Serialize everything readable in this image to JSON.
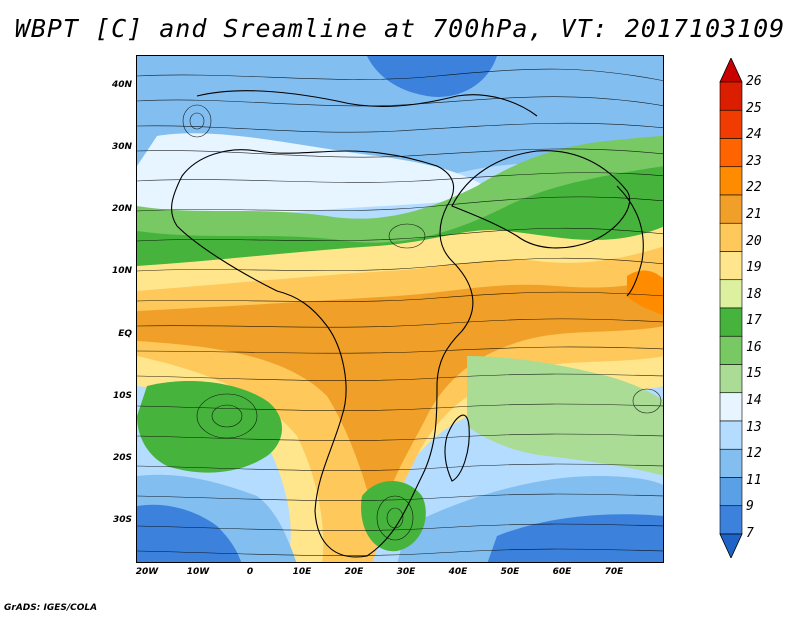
{
  "title": "WBPT [C] and Sreamline at 700hPa, VT: 2017103109",
  "footer": "GrADS: IGES/COLA",
  "lat_ticks": [
    "40N",
    "30N",
    "20N",
    "10N",
    "EQ",
    "10S",
    "20S",
    "30S"
  ],
  "lon_ticks": [
    "20W",
    "10W",
    "0",
    "10E",
    "20E",
    "30E",
    "40E",
    "50E",
    "60E",
    "70E"
  ],
  "colorbar": {
    "labels": [
      "26",
      "25",
      "24",
      "23",
      "22",
      "21",
      "20",
      "19",
      "18",
      "17",
      "16",
      "15",
      "14",
      "13",
      "12",
      "11",
      "9",
      "7"
    ],
    "colors": [
      "#c80000",
      "#dc1e00",
      "#f03c00",
      "#ff6400",
      "#ff8c00",
      "#f0a028",
      "#ffc85a",
      "#ffe68c",
      "#dcf0a0",
      "#46b43c",
      "#78c864",
      "#aadc96",
      "#e6f5ff",
      "#b4dcff",
      "#82bef0",
      "#5aa0e6",
      "#3c82dc",
      "#1e64c8"
    ]
  },
  "map_colors": {
    "cold": "#1e64c8",
    "cool": "#5aa0e6",
    "light_blue": "#b4dcff",
    "pale": "#e6f5ff",
    "green_dark": "#46b43c",
    "green": "#78c864",
    "green_light": "#aadc96",
    "yellow": "#ffe68c",
    "orange_light": "#ffc85a",
    "orange": "#f0a028",
    "orange_dark": "#ff8c00"
  }
}
